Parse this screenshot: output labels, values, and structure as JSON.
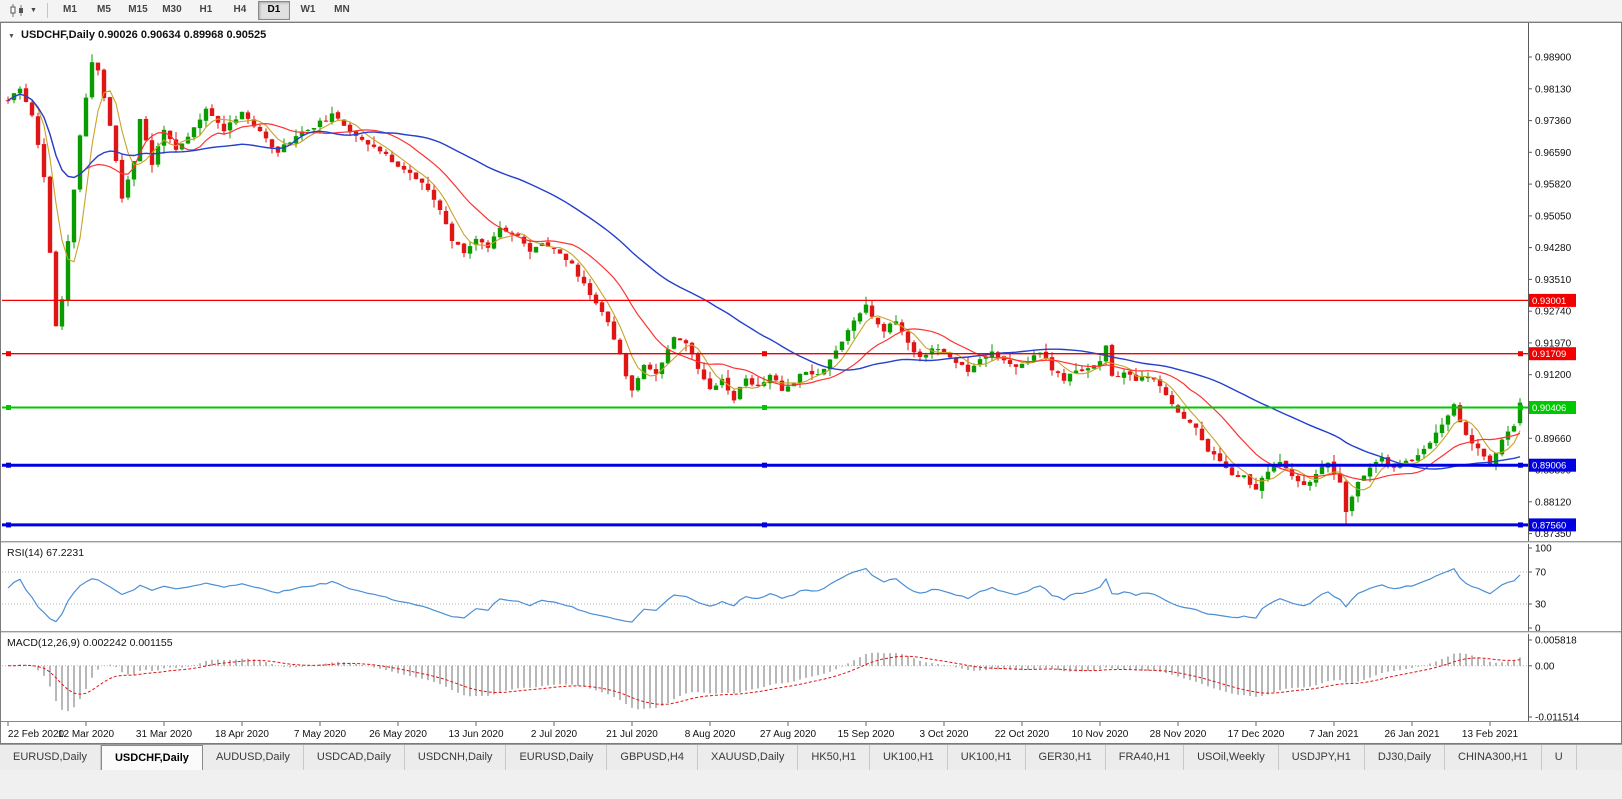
{
  "toolbar": {
    "timeframes": [
      "M1",
      "M5",
      "M15",
      "M30",
      "H1",
      "H4",
      "D1",
      "W1",
      "MN"
    ],
    "active_timeframe": "D1",
    "chart_type_icon": "candlestick-chart-icon"
  },
  "chart_data": {
    "type": "candlestick",
    "symbol_period": "USDCHF,Daily",
    "ohlc": {
      "open": "0.90026",
      "high": "0.90634",
      "low": "0.89968",
      "close": "0.90525"
    },
    "view": {
      "price_top": 0.997,
      "price_bottom": 0.8717
    },
    "price_axis": {
      "ticks": [
        "0.98900",
        "0.98130",
        "0.97360",
        "0.96590",
        "0.95820",
        "0.95050",
        "0.94280",
        "0.93510",
        "0.92740",
        "0.91970",
        "0.91200",
        "0.90430",
        "0.89660",
        "0.88890",
        "0.88120",
        "0.87350"
      ]
    },
    "levels": [
      {
        "price": 0.93001,
        "label": "0.93001",
        "color": "#f20000",
        "width": 1.3,
        "handles": false
      },
      {
        "price": 0.91709,
        "label": "0.91709",
        "color": "#f20000",
        "width": 1.3,
        "handles": true
      },
      {
        "price": 0.90406,
        "label": "0.90406",
        "color": "#00c800",
        "width": 2,
        "handles": true
      },
      {
        "price": 0.89006,
        "label": "0.89006",
        "color": "#0000e0",
        "width": 3,
        "handles": true
      },
      {
        "price": 0.8756,
        "label": "0.87560",
        "color": "#0000e0",
        "width": 3,
        "handles": true
      }
    ],
    "date_axis": {
      "bars_per_label": 13,
      "labels": [
        "22 Feb 2020",
        "12 Mar 2020",
        "31 Mar 2020",
        "18 Apr 2020",
        "7 May 2020",
        "26 May 2020",
        "13 Jun 2020",
        "2 Jul 2020",
        "21 Jul 2020",
        "8 Aug 2020",
        "27 Aug 2020",
        "15 Sep 2020",
        "3 Oct 2020",
        "22 Oct 2020",
        "10 Nov 2020",
        "28 Nov 2020",
        "17 Dec 2020",
        "7 Jan 2021",
        "26 Jan 2021",
        "13 Feb 2021"
      ]
    },
    "candles": {
      "count": 253,
      "seed": 11,
      "noise": 0.0011,
      "wick": 0.002,
      "gap": 0.0006,
      "up_color": "#089c00",
      "down_color": "#e01515",
      "anchors": [
        [
          0,
          0.9785
        ],
        [
          2,
          0.9812
        ],
        [
          4,
          0.9752
        ],
        [
          6,
          0.96
        ],
        [
          8,
          0.9235
        ],
        [
          9,
          0.93
        ],
        [
          10,
          0.944
        ],
        [
          12,
          0.97
        ],
        [
          14,
          0.9878
        ],
        [
          15,
          0.9858
        ],
        [
          17,
          0.9725
        ],
        [
          19,
          0.9548
        ],
        [
          21,
          0.964
        ],
        [
          22,
          0.9742
        ],
        [
          24,
          0.9628
        ],
        [
          26,
          0.9718
        ],
        [
          28,
          0.966
        ],
        [
          30,
          0.9695
        ],
        [
          33,
          0.9762
        ],
        [
          36,
          0.9715
        ],
        [
          39,
          0.9758
        ],
        [
          42,
          0.9705
        ],
        [
          45,
          0.9662
        ],
        [
          48,
          0.97
        ],
        [
          51,
          0.9722
        ],
        [
          54,
          0.9748
        ],
        [
          57,
          0.9712
        ],
        [
          60,
          0.9682
        ],
        [
          63,
          0.965
        ],
        [
          66,
          0.9618
        ],
        [
          69,
          0.9585
        ],
        [
          72,
          0.952
        ],
        [
          74,
          0.9445
        ],
        [
          76,
          0.942
        ],
        [
          78,
          0.9448
        ],
        [
          80,
          0.9432
        ],
        [
          82,
          0.9478
        ],
        [
          85,
          0.9458
        ],
        [
          87,
          0.9415
        ],
        [
          89,
          0.9442
        ],
        [
          91,
          0.9428
        ],
        [
          94,
          0.9385
        ],
        [
          97,
          0.9315
        ],
        [
          100,
          0.9252
        ],
        [
          102,
          0.9165
        ],
        [
          104,
          0.9078
        ],
        [
          106,
          0.9148
        ],
        [
          108,
          0.9122
        ],
        [
          111,
          0.9215
        ],
        [
          113,
          0.9198
        ],
        [
          115,
          0.9135
        ],
        [
          117,
          0.909
        ],
        [
          119,
          0.9108
        ],
        [
          121,
          0.9062
        ],
        [
          123,
          0.9112
        ],
        [
          125,
          0.9088
        ],
        [
          127,
          0.9122
        ],
        [
          129,
          0.9082
        ],
        [
          131,
          0.9105
        ],
        [
          133,
          0.9132
        ],
        [
          135,
          0.912
        ],
        [
          137,
          0.9158
        ],
        [
          139,
          0.92
        ],
        [
          141,
          0.9252
        ],
        [
          143,
          0.9292
        ],
        [
          144,
          0.9262
        ],
        [
          146,
          0.9228
        ],
        [
          148,
          0.9252
        ],
        [
          150,
          0.9195
        ],
        [
          152,
          0.9162
        ],
        [
          154,
          0.9185
        ],
        [
          156,
          0.9172
        ],
        [
          158,
          0.9152
        ],
        [
          160,
          0.9132
        ],
        [
          162,
          0.9158
        ],
        [
          164,
          0.9178
        ],
        [
          166,
          0.9152
        ],
        [
          168,
          0.9135
        ],
        [
          170,
          0.9155
        ],
        [
          172,
          0.9178
        ],
        [
          174,
          0.9132
        ],
        [
          176,
          0.9108
        ],
        [
          178,
          0.9128
        ],
        [
          180,
          0.9138
        ],
        [
          182,
          0.9152
        ],
        [
          183,
          0.9188
        ],
        [
          184,
          0.9112
        ],
        [
          186,
          0.9125
        ],
        [
          188,
          0.9105
        ],
        [
          190,
          0.9118
        ],
        [
          192,
          0.9088
        ],
        [
          194,
          0.9052
        ],
        [
          196,
          0.9012
        ],
        [
          198,
          0.8992
        ],
        [
          200,
          0.8938
        ],
        [
          202,
          0.8908
        ],
        [
          204,
          0.8882
        ],
        [
          206,
          0.8872
        ],
        [
          208,
          0.8842
        ],
        [
          210,
          0.8888
        ],
        [
          212,
          0.8908
        ],
        [
          214,
          0.8872
        ],
        [
          216,
          0.8848
        ],
        [
          218,
          0.8882
        ],
        [
          220,
          0.8902
        ],
        [
          222,
          0.8858
        ],
        [
          223,
          0.8782
        ],
        [
          225,
          0.8862
        ],
        [
          227,
          0.8895
        ],
        [
          229,
          0.8915
        ],
        [
          231,
          0.8892
        ],
        [
          233,
          0.8908
        ],
        [
          235,
          0.8922
        ],
        [
          237,
          0.8958
        ],
        [
          239,
          0.9002
        ],
        [
          241,
          0.9045
        ],
        [
          242,
          0.9005
        ],
        [
          244,
          0.8952
        ],
        [
          246,
          0.8922
        ],
        [
          247,
          0.8902
        ],
        [
          249,
          0.8958
        ],
        [
          251,
          0.9
        ],
        [
          252,
          0.9052
        ]
      ],
      "pins": [
        {
          "i": 14,
          "high": 0.9893
        },
        {
          "i": 143,
          "high": 0.93005
        },
        {
          "i": 223,
          "low": 0.8757
        }
      ]
    },
    "moving_averages": [
      {
        "period": 5,
        "color": "#c9a227",
        "width": 1.1
      },
      {
        "period": 14,
        "color": "#ff3333",
        "width": 1.2
      },
      {
        "period": 40,
        "color": "#2440cf",
        "width": 1.4
      }
    ],
    "rsi": {
      "label": "RSI(14)",
      "value": "67.2231",
      "period": 14,
      "axis_levels": [
        100,
        70,
        30,
        0
      ],
      "upper_level": 70,
      "lower_level": 30,
      "line_color": "#4b8fd5"
    },
    "macd": {
      "label": "MACD(12,26,9)",
      "main_value": "0.002242",
      "signal_value": "0.001155",
      "fast_period": 12,
      "slow_period": 26,
      "signal_period": 9,
      "scale_max": 0.005818,
      "scale_min": -0.011514,
      "axis_labels": [
        "0.005818",
        "0.00",
        "-0.011514"
      ],
      "hist_color": "#9a9a9a",
      "signal_color": "#e01515"
    }
  },
  "tabs": {
    "active_index": 1,
    "items": [
      "EURUSD,Daily",
      "USDCHF,Daily",
      "AUDUSD,Daily",
      "USDCAD,Daily",
      "USDCNH,Daily",
      "EURUSD,Daily",
      "GBPUSD,H4",
      "XAUUSD,Daily",
      "HK50,H1",
      "UK100,H1",
      "UK100,H1",
      "GER30,H1",
      "FRA40,H1",
      "USOil,Weekly",
      "USDJPY,H1",
      "DJ30,Daily",
      "CHINA300,H1",
      "U"
    ]
  }
}
